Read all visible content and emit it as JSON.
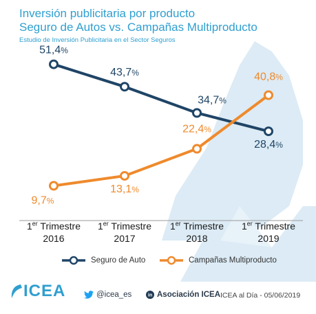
{
  "header": {
    "title_line1": "Inversión publicitaria por producto",
    "title_line2": "Seguro de Autos vs. Campañas Multiproducto",
    "subtitle": "Estudio de Inversión Publicitaria en el Sector Seguros"
  },
  "colors": {
    "title": "#2f9fd0",
    "series_auto": "#1f4566",
    "series_multi": "#ef8a2c",
    "watermark": "#dcebf5"
  },
  "chart_data": {
    "type": "line",
    "categories": [
      {
        "sup": "er",
        "pre": "1",
        "post": " Trimestre",
        "year": "2016"
      },
      {
        "sup": "er",
        "pre": "1",
        "post": " Trimestre",
        "year": "2017"
      },
      {
        "sup": "er",
        "pre": "1",
        "post": " Trimestre",
        "year": "2018"
      },
      {
        "sup": "er",
        "pre": "1",
        "post": " Trimestre",
        "year": "2019"
      }
    ],
    "series": [
      {
        "name": "Seguro de Auto",
        "values": [
          51.4,
          43.7,
          34.7,
          28.4
        ],
        "labels": [
          "51,4",
          "43,7",
          "34,7",
          "28,4"
        ],
        "color": "#1f4566"
      },
      {
        "name": "Campañas Multiproducto",
        "values": [
          9.7,
          13.1,
          22.4,
          40.8
        ],
        "labels": [
          "9,7",
          "13,1",
          "22,4",
          "40,8"
        ],
        "color": "#ef8a2c"
      }
    ],
    "unit": "%",
    "ylim": [
      0,
      60
    ],
    "grid": false,
    "legend_position": "bottom"
  },
  "footer": {
    "logo": "ICEA",
    "twitter_icon": "twitter-icon",
    "twitter": "@icea_es",
    "linkedin_icon": "linkedin-icon",
    "linkedin": "Asociación ICEA",
    "date_note": "ICEA al Día - 05/06/2019"
  }
}
